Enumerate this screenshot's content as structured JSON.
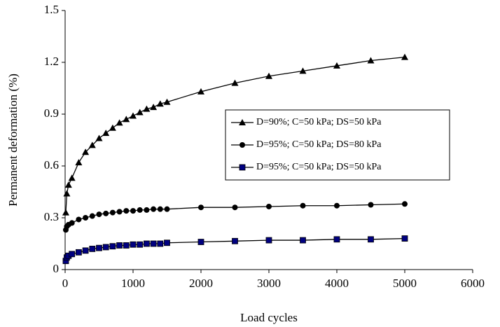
{
  "chart_data": {
    "type": "line",
    "x_label": "Load cycles",
    "y_label": "Permanent deformation (%)",
    "x": [
      10,
      25,
      50,
      100,
      200,
      300,
      400,
      500,
      600,
      700,
      800,
      900,
      1000,
      1100,
      1200,
      1300,
      1400,
      1500,
      2000,
      2500,
      3000,
      3500,
      4000,
      4500,
      5000
    ],
    "series": [
      {
        "name": "D=90%; C=50 kPa; DS=50 kPa",
        "color": "#000000",
        "marker": "triangle",
        "values": [
          0.33,
          0.44,
          0.49,
          0.53,
          0.62,
          0.68,
          0.72,
          0.76,
          0.79,
          0.82,
          0.85,
          0.87,
          0.89,
          0.91,
          0.93,
          0.94,
          0.96,
          0.97,
          1.03,
          1.08,
          1.12,
          1.15,
          1.18,
          1.21,
          1.23
        ]
      },
      {
        "name": "D=95%; C=50 kPa; DS=80 kPa",
        "color": "#000000",
        "marker": "circle",
        "values": [
          0.23,
          0.25,
          0.26,
          0.27,
          0.29,
          0.3,
          0.31,
          0.32,
          0.325,
          0.33,
          0.335,
          0.34,
          0.34,
          0.345,
          0.345,
          0.35,
          0.35,
          0.35,
          0.36,
          0.36,
          0.365,
          0.37,
          0.37,
          0.375,
          0.38
        ]
      },
      {
        "name": "D=95%; C=50 kPa; DS=50 kPa",
        "color": "#000080",
        "marker": "square",
        "values": [
          0.05,
          0.07,
          0.08,
          0.09,
          0.1,
          0.11,
          0.12,
          0.125,
          0.13,
          0.135,
          0.14,
          0.14,
          0.145,
          0.145,
          0.15,
          0.15,
          0.15,
          0.155,
          0.16,
          0.165,
          0.17,
          0.17,
          0.175,
          0.175,
          0.18
        ]
      }
    ],
    "xlim": [
      0,
      6000
    ],
    "xticks": [
      0,
      1000,
      2000,
      3000,
      4000,
      5000,
      6000
    ],
    "ylim": [
      0,
      1.5
    ],
    "yticks": [
      0,
      0.3,
      0.6,
      0.9,
      1.2,
      1.5
    ]
  }
}
